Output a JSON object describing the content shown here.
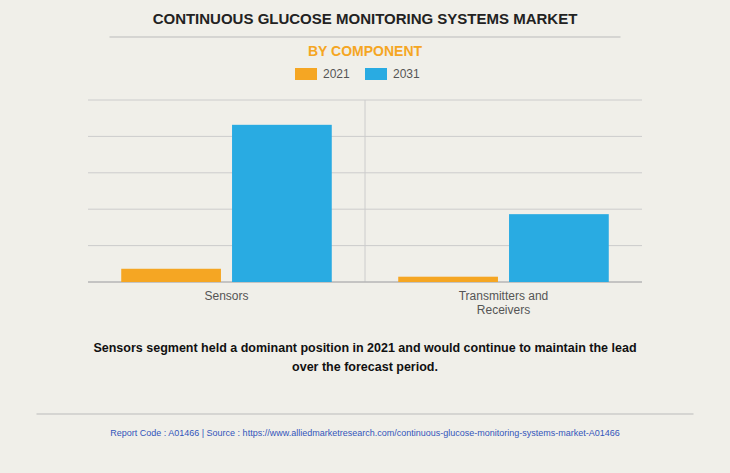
{
  "chart_data": {
    "type": "bar",
    "title": "CONTINUOUS GLUCOSE MONITORING SYSTEMS MARKET",
    "subtitle": "BY COMPONENT",
    "categories": [
      "Sensors",
      "Transmitters and\nReceivers"
    ],
    "series": [
      {
        "name": "2021",
        "color": "#F5A623",
        "values": [
          0.8,
          0.32
        ]
      },
      {
        "name": "2031",
        "color": "#29ABE2",
        "values": [
          9.5,
          4.1
        ]
      }
    ],
    "ylim": [
      0,
      11
    ],
    "yticks": [
      0,
      2.2,
      4.4,
      6.6,
      8.8,
      11
    ],
    "grid": true,
    "legend": "top",
    "tick_labels": "x",
    "annotations": [
      "Sensors segment held a dominant position in 2021 and would continue to maintain the lead\nover the forecast period.",
      "Report Code : A01466  |  Source : https://www.alliedmarketresearch.com/continuous-glucose-monitoring-systems-market-A01466"
    ]
  }
}
